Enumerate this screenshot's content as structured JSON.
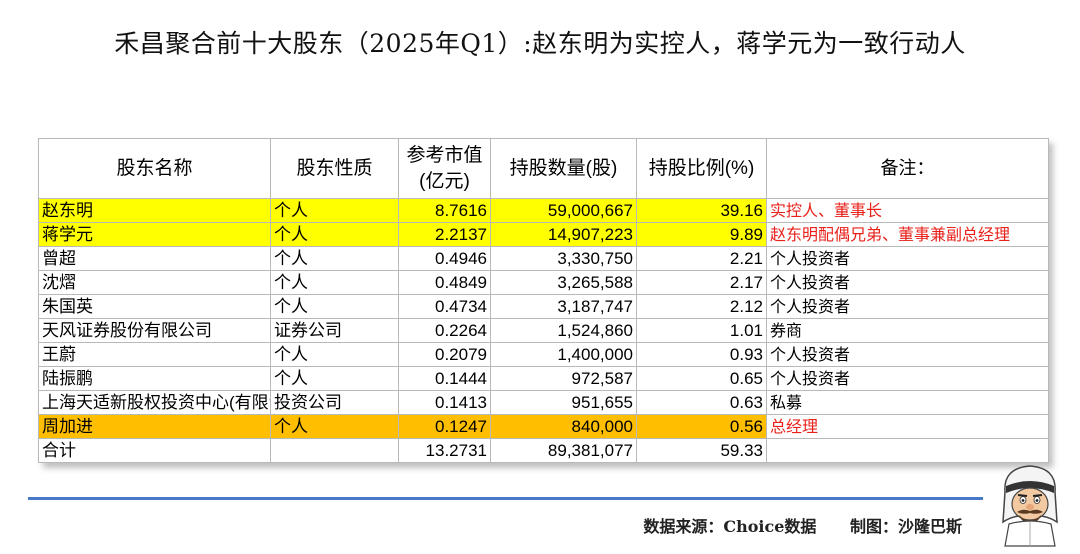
{
  "title": "禾昌聚合前十大股东（2025年Q1）:赵东明为实控人，蒋学元为一致行动人",
  "table": {
    "headers": [
      "股东名称",
      "股东性质",
      "参考市值\n(亿元)",
      "持股数量(股)",
      "持股比例(%)",
      "备注："
    ],
    "rows": [
      {
        "name": "赵东明",
        "type": "个人",
        "value": "8.7616",
        "shares": "59,000,667",
        "ratio": "39.16",
        "note": "实控人、董事长",
        "highlight": "yellow",
        "note_color": "red"
      },
      {
        "name": "蒋学元",
        "type": "个人",
        "value": "2.2137",
        "shares": "14,907,223",
        "ratio": "9.89",
        "note": "赵东明配偶兄弟、董事兼副总经理",
        "highlight": "yellow",
        "note_color": "red"
      },
      {
        "name": "曾超",
        "type": "个人",
        "value": "0.4946",
        "shares": "3,330,750",
        "ratio": "2.21",
        "note": "个人投资者",
        "highlight": "",
        "note_color": ""
      },
      {
        "name": "沈熠",
        "type": "个人",
        "value": "0.4849",
        "shares": "3,265,588",
        "ratio": "2.17",
        "note": "个人投资者",
        "highlight": "",
        "note_color": ""
      },
      {
        "name": "朱国英",
        "type": "个人",
        "value": "0.4734",
        "shares": "3,187,747",
        "ratio": "2.12",
        "note": "个人投资者",
        "highlight": "",
        "note_color": ""
      },
      {
        "name": "天风证券股份有限公司",
        "type": "证券公司",
        "value": "0.2264",
        "shares": "1,524,860",
        "ratio": "1.01",
        "note": "券商",
        "highlight": "",
        "note_color": ""
      },
      {
        "name": "王蔚",
        "type": "个人",
        "value": "0.2079",
        "shares": "1,400,000",
        "ratio": "0.93",
        "note": "个人投资者",
        "highlight": "",
        "note_color": ""
      },
      {
        "name": "陆振鹏",
        "type": "个人",
        "value": "0.1444",
        "shares": "972,587",
        "ratio": "0.65",
        "note": "个人投资者",
        "highlight": "",
        "note_color": ""
      },
      {
        "name": "上海天适新股权投资中心(有限合伙)",
        "type": "投资公司",
        "value": "0.1413",
        "shares": "951,655",
        "ratio": "0.63",
        "note": "私募",
        "highlight": "",
        "note_color": ""
      },
      {
        "name": "周加进",
        "type": "个人",
        "value": "0.1247",
        "shares": "840,000",
        "ratio": "0.56",
        "note": "总经理",
        "highlight": "orange",
        "note_color": "red"
      },
      {
        "name": "合计",
        "type": "",
        "value": "13.2731",
        "shares": "89,381,077",
        "ratio": "59.33",
        "note": "",
        "highlight": "",
        "note_color": ""
      }
    ]
  },
  "footer": {
    "source": "数据来源：Choice数据",
    "author": "制图：沙隆巴斯"
  },
  "colors": {
    "yellow": "#ffff00",
    "orange": "#ffbf00",
    "note_red": "#e8221b",
    "rule_blue": "#4a78c8"
  },
  "icons": {
    "avatar": "cartoon-character-icon"
  }
}
